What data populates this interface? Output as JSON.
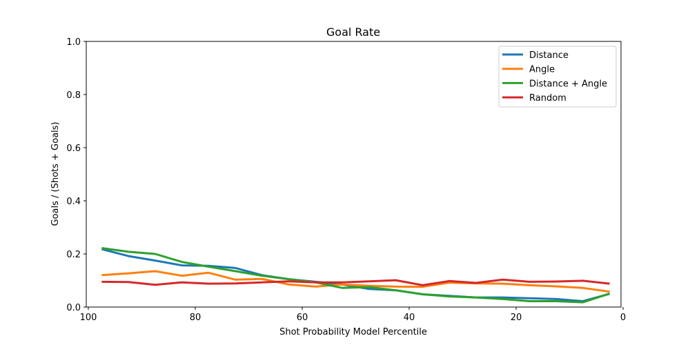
{
  "chart_data": {
    "type": "line",
    "title": "Goal Rate",
    "xlabel": "Shot Probability Model Percentile",
    "ylabel": "Goals / (Shots + Goals)",
    "xlim": [
      100,
      0
    ],
    "ylim": [
      0,
      1.0
    ],
    "xticks": [
      100,
      80,
      60,
      40,
      20,
      0
    ],
    "yticks": [
      0.0,
      0.2,
      0.4,
      0.6,
      0.8,
      1.0
    ],
    "xtick_labels": [
      "100",
      "80",
      "60",
      "40",
      "20",
      "0"
    ],
    "ytick_labels": [
      "0.0",
      "0.2",
      "0.4",
      "0.6",
      "0.8",
      "1.0"
    ],
    "grid": false,
    "legend_position": "top-right",
    "x": [
      97.5,
      92.5,
      87.5,
      82.5,
      77.5,
      72.5,
      67.5,
      62.5,
      57.5,
      52.5,
      47.5,
      42.5,
      37.5,
      32.5,
      27.5,
      22.5,
      17.5,
      12.5,
      7.5,
      2.5
    ],
    "series": [
      {
        "name": "Distance",
        "color": "#1f77b4",
        "values": [
          0.218,
          0.192,
          0.175,
          0.157,
          0.155,
          0.147,
          0.12,
          0.105,
          0.095,
          0.085,
          0.068,
          0.063,
          0.048,
          0.042,
          0.036,
          0.036,
          0.033,
          0.03,
          0.022,
          0.05
        ]
      },
      {
        "name": "Angle",
        "color": "#ff7f0e",
        "values": [
          0.12,
          0.127,
          0.135,
          0.118,
          0.129,
          0.103,
          0.106,
          0.085,
          0.077,
          0.085,
          0.08,
          0.077,
          0.076,
          0.092,
          0.089,
          0.088,
          0.082,
          0.078,
          0.072,
          0.058
        ]
      },
      {
        "name": "Distance + Angle",
        "color": "#2ca02c",
        "values": [
          0.222,
          0.208,
          0.2,
          0.17,
          0.152,
          0.135,
          0.118,
          0.105,
          0.093,
          0.072,
          0.075,
          0.063,
          0.048,
          0.04,
          0.036,
          0.03,
          0.022,
          0.022,
          0.018,
          0.051
        ]
      },
      {
        "name": "Random",
        "color": "#d62728",
        "values": [
          0.095,
          0.094,
          0.084,
          0.093,
          0.088,
          0.089,
          0.093,
          0.097,
          0.093,
          0.093,
          0.097,
          0.101,
          0.082,
          0.098,
          0.091,
          0.103,
          0.095,
          0.096,
          0.099,
          0.088
        ]
      }
    ]
  }
}
